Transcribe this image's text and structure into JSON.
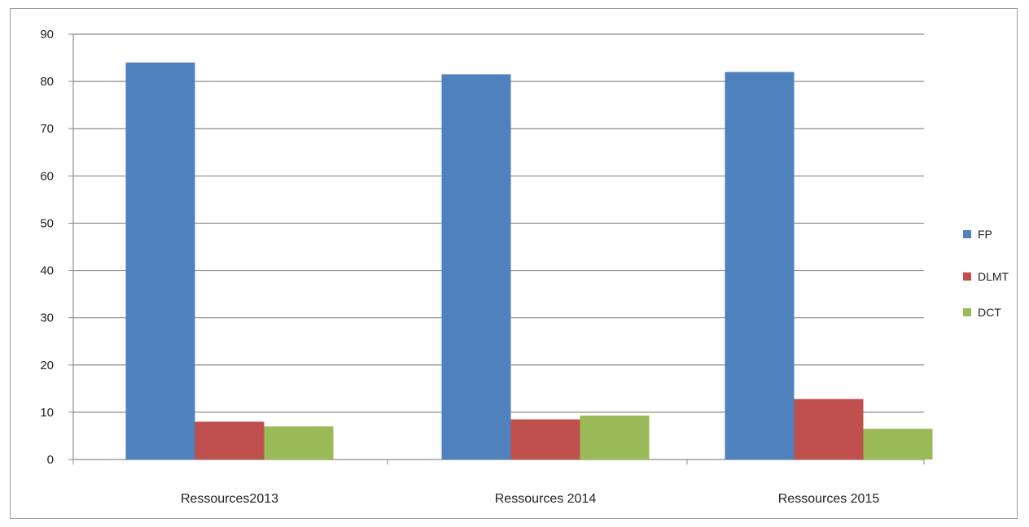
{
  "chart_data": {
    "type": "bar",
    "title": "",
    "xlabel": "",
    "ylabel": "",
    "categories": [
      "Ressources2013",
      "Ressources 2014",
      "Ressources  2015"
    ],
    "series": [
      {
        "name": "FP",
        "color": "#4f81bd",
        "values": [
          84,
          81.5,
          82
        ]
      },
      {
        "name": "DLMT",
        "color": "#c0504d",
        "values": [
          8,
          8.5,
          12.8
        ]
      },
      {
        "name": "DCT",
        "color": "#9bbb59",
        "values": [
          7,
          9.3,
          6.5
        ]
      }
    ],
    "ylim": [
      0,
      90
    ],
    "yticks": [
      0,
      10,
      20,
      30,
      40,
      50,
      60,
      70,
      80,
      90
    ],
    "grid": true,
    "legend_position": "right"
  }
}
